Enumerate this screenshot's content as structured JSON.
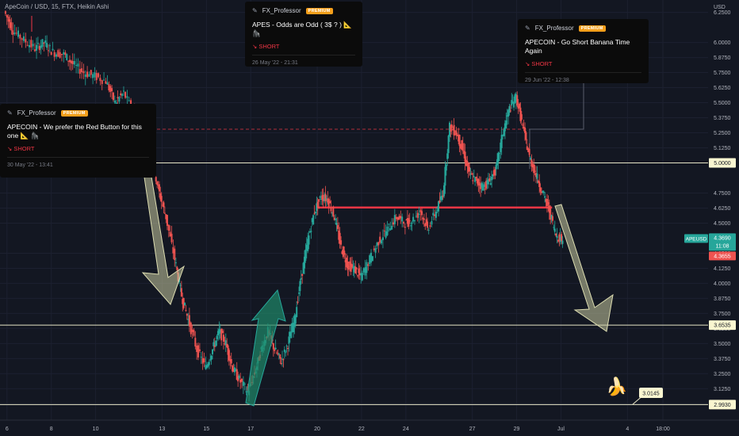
{
  "header": {
    "symbol_line": "ApeCoin / USD, 15, FTX, Heikin Ashi"
  },
  "ideas": [
    {
      "author": "FX_Professor",
      "badge": "PREMIUM",
      "title": "APES - Odds are Odd ( 3$ ? ) 📐 🦍",
      "signal": "↘ SHORT",
      "date": "26 May '22 - 21:31"
    },
    {
      "author": "FX_Professor",
      "badge": "PREMIUM",
      "title": "APECOIN - Go Short Banana Time Again",
      "signal": "↘ SHORT",
      "date": "29 Jun '22 - 12:38"
    },
    {
      "author": "FX_Professor",
      "badge": "PREMIUM",
      "title": "APECOIN - We prefer the Red Button for this one 📐 🦍",
      "signal": "↘ SHORT",
      "date": "30 May '22 - 13:41"
    }
  ],
  "banana_icon": "banana-icon",
  "chart_data": {
    "type": "candlestick",
    "style": "Heikin Ashi",
    "interval": "15",
    "exchange": "FTX",
    "symbol": "APEUSD",
    "currency_label": "USD",
    "ylim": [
      2.93,
      6.3
    ],
    "y_ticks": [
      "6.2500",
      "6.0000",
      "5.8750",
      "5.7500",
      "5.6250",
      "5.5000",
      "5.3750",
      "5.2500",
      "5.1250",
      "5.0000",
      "4.7500",
      "4.6250",
      "4.5000",
      "4.2500",
      "4.1250",
      "4.0000",
      "3.8750",
      "3.7500",
      "3.6250",
      "3.5000",
      "3.3750",
      "3.2500",
      "3.1250",
      "3.0000"
    ],
    "x_ticks": [
      {
        "label": "6",
        "day": 6
      },
      {
        "label": "8",
        "day": 8
      },
      {
        "label": "10",
        "day": 10
      },
      {
        "label": "13",
        "day": 13
      },
      {
        "label": "15",
        "day": 15
      },
      {
        "label": "17",
        "day": 17
      },
      {
        "label": "20",
        "day": 20
      },
      {
        "label": "22",
        "day": 22
      },
      {
        "label": "24",
        "day": 24
      },
      {
        "label": "27",
        "day": 27
      },
      {
        "label": "29",
        "day": 29
      },
      {
        "label": "Jul",
        "day": 31
      },
      {
        "label": "4",
        "day": 34
      },
      {
        "label": "18:00",
        "day": 35.6
      }
    ],
    "horizontal_levels": [
      {
        "value": 5.0,
        "label": "5.0000",
        "color": "#e8e6c7"
      },
      {
        "value": 3.6535,
        "label": "3.6535",
        "color": "#e8e6c7"
      },
      {
        "value": 2.993,
        "label": "2.9930",
        "color": "#e8e6c7"
      }
    ],
    "resistance_line": {
      "value": 4.63,
      "from_day": 20,
      "to_day": 30.6,
      "color": "#f23645"
    },
    "dashed_level": {
      "value": 5.28,
      "color": "#f23645"
    },
    "price_label": {
      "symbol": "APEUSD",
      "price": "4.3690",
      "countdown": "11:08",
      "prev": "4.3655"
    },
    "annotation_value": "3.0145",
    "path": [
      [
        5.9,
        6.26
      ],
      [
        6.3,
        6.1
      ],
      [
        6.8,
        6.02
      ],
      [
        7.3,
        5.95
      ],
      [
        7.7,
        6.0
      ],
      [
        8.1,
        5.92
      ],
      [
        8.6,
        5.9
      ],
      [
        9.0,
        5.82
      ],
      [
        9.5,
        5.75
      ],
      [
        10.0,
        5.72
      ],
      [
        10.5,
        5.68
      ],
      [
        10.9,
        5.5
      ],
      [
        11.3,
        5.58
      ],
      [
        11.8,
        5.4
      ],
      [
        12.3,
        5.1
      ],
      [
        12.6,
        5.0
      ],
      [
        12.9,
        4.75
      ],
      [
        13.2,
        4.55
      ],
      [
        13.6,
        4.2
      ],
      [
        13.9,
        3.9
      ],
      [
        14.2,
        3.7
      ],
      [
        14.6,
        3.45
      ],
      [
        15.0,
        3.3
      ],
      [
        15.3,
        3.45
      ],
      [
        15.6,
        3.6
      ],
      [
        15.9,
        3.5
      ],
      [
        16.2,
        3.3
      ],
      [
        16.5,
        3.2
      ],
      [
        16.9,
        3.1
      ],
      [
        17.2,
        3.25
      ],
      [
        17.5,
        3.45
      ],
      [
        17.8,
        3.6
      ],
      [
        18.1,
        3.45
      ],
      [
        18.4,
        3.35
      ],
      [
        18.7,
        3.5
      ],
      [
        19.0,
        3.7
      ],
      [
        19.3,
        4.05
      ],
      [
        19.6,
        4.35
      ],
      [
        19.9,
        4.6
      ],
      [
        20.2,
        4.72
      ],
      [
        20.5,
        4.7
      ],
      [
        20.8,
        4.55
      ],
      [
        21.1,
        4.3
      ],
      [
        21.4,
        4.15
      ],
      [
        21.7,
        4.12
      ],
      [
        22.0,
        4.05
      ],
      [
        22.4,
        4.2
      ],
      [
        22.8,
        4.35
      ],
      [
        23.2,
        4.45
      ],
      [
        23.6,
        4.55
      ],
      [
        24.0,
        4.5
      ],
      [
        24.3,
        4.52
      ],
      [
        24.7,
        4.6
      ],
      [
        25.0,
        4.45
      ],
      [
        25.4,
        4.6
      ],
      [
        25.7,
        4.75
      ],
      [
        26.0,
        5.3
      ],
      [
        26.3,
        5.25
      ],
      [
        26.6,
        5.1
      ],
      [
        26.9,
        4.9
      ],
      [
        27.2,
        4.85
      ],
      [
        27.5,
        4.8
      ],
      [
        27.8,
        4.85
      ],
      [
        28.1,
        4.95
      ],
      [
        28.4,
        5.25
      ],
      [
        28.7,
        5.45
      ],
      [
        29.0,
        5.55
      ],
      [
        29.3,
        5.3
      ],
      [
        29.6,
        5.05
      ],
      [
        29.9,
        4.9
      ],
      [
        30.2,
        4.75
      ],
      [
        30.5,
        4.6
      ],
      [
        30.8,
        4.4
      ],
      [
        31.1,
        4.36
      ]
    ]
  }
}
